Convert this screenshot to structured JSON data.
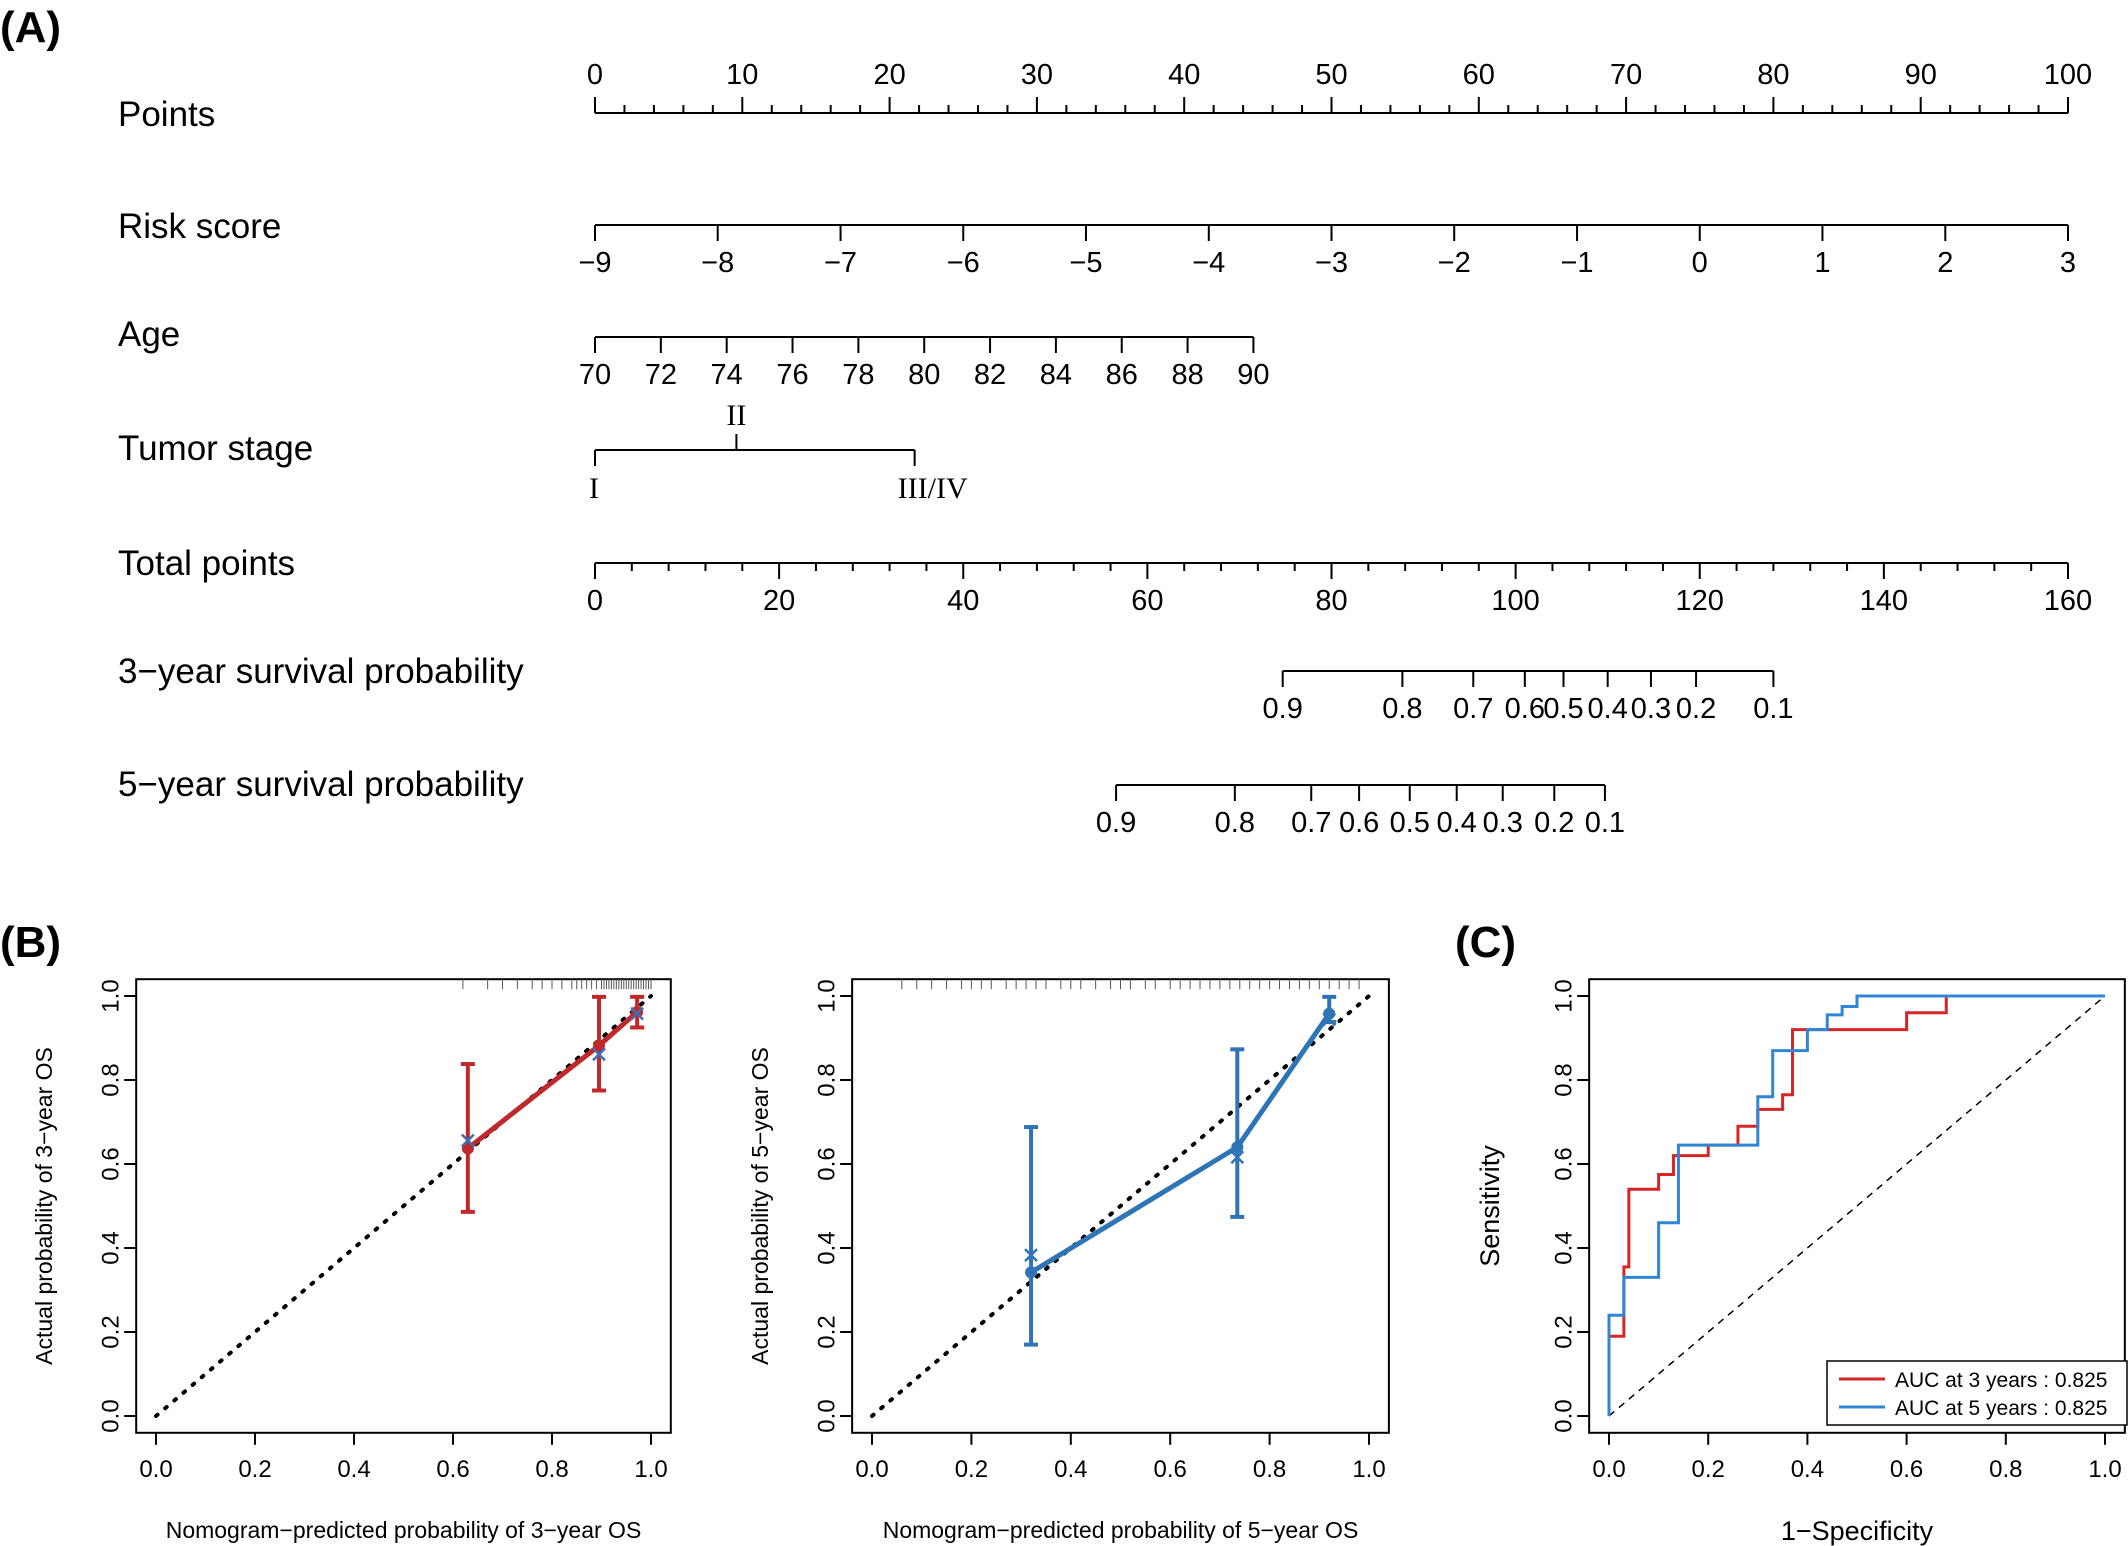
{
  "panels": {
    "a": "(A)",
    "b": "(B)",
    "c": "(C)"
  },
  "chart_data": [
    {
      "type": "nomogram",
      "panel": "(A)",
      "scales": [
        {
          "label": "Points",
          "ticks": [
            "0",
            "10",
            "20",
            "30",
            "40",
            "50",
            "60",
            "70",
            "80",
            "90",
            "100"
          ],
          "tick_points": [
            0,
            10,
            20,
            30,
            40,
            50,
            60,
            70,
            80,
            90,
            100
          ],
          "minor_step": 2
        },
        {
          "label": "Risk score",
          "ticks": [
            "−9",
            "−8",
            "−7",
            "−6",
            "−5",
            "−4",
            "−3",
            "−2",
            "−1",
            "0",
            "1",
            "2",
            "3"
          ],
          "tick_points": [
            0,
            8.33,
            16.67,
            25,
            33.33,
            41.67,
            50,
            58.33,
            66.67,
            75,
            83.33,
            91.67,
            100
          ]
        },
        {
          "label": "Age",
          "ticks": [
            "70",
            "72",
            "74",
            "76",
            "78",
            "80",
            "82",
            "84",
            "86",
            "88",
            "90"
          ],
          "tick_points": [
            0,
            4.47,
            8.94,
            13.41,
            17.88,
            22.35,
            26.82,
            31.29,
            35.76,
            40.23,
            44.7
          ]
        },
        {
          "label": "Tumor stage",
          "ticks": [
            "I",
            "II",
            "III/IV"
          ],
          "tick_points": [
            0,
            9.6,
            21.7
          ],
          "tick_side": [
            "below",
            "above",
            "below"
          ]
        },
        {
          "label": "Total points",
          "ticks": [
            "0",
            "20",
            "40",
            "60",
            "80",
            "100",
            "120",
            "140",
            "160"
          ],
          "tick_values": [
            0,
            20,
            40,
            60,
            80,
            100,
            120,
            140,
            160
          ],
          "range": [
            0,
            160
          ],
          "minor_step": 4
        },
        {
          "label": "3−year survival probability",
          "ticks": [
            "0.9",
            "0.8",
            "0.7",
            "0.6",
            "0.5",
            "0.4",
            "0.3",
            "0.2",
            "0.1"
          ],
          "tick_total_points": [
            74.7,
            87.7,
            95.4,
            101.0,
            105.2,
            110.0,
            114.7,
            119.6,
            128.0
          ]
        },
        {
          "label": "5−year survival probability",
          "ticks": [
            "0.9",
            "0.8",
            "0.7",
            "0.6",
            "0.5",
            "0.4",
            "0.3",
            "0.2",
            "0.1"
          ],
          "tick_total_points": [
            56.6,
            69.5,
            77.8,
            83.0,
            88.5,
            93.6,
            98.6,
            104.2,
            109.7
          ]
        }
      ]
    },
    {
      "type": "line",
      "panel": "(B)",
      "xlabel": "Nomogram−predicted probability of 3−year OS",
      "ylabel": "Actual probability of 3−year OS",
      "xlim": [
        0,
        1.0
      ],
      "ylim": [
        0,
        1.0
      ],
      "xticks": [
        "0.0",
        "0.2",
        "0.4",
        "0.6",
        "0.8",
        "1.0"
      ],
      "yticks": [
        "0.0",
        "0.2",
        "0.4",
        "0.6",
        "0.8",
        "1.0"
      ],
      "tick_values": [
        0,
        0.2,
        0.4,
        0.6,
        0.8,
        1.0
      ],
      "reference_line": {
        "x": [
          0,
          1.0
        ],
        "y": [
          0,
          1.0
        ],
        "style": "dotted"
      },
      "color": "#c0282b",
      "x": [
        0.63,
        0.895,
        0.972
      ],
      "y": [
        0.637,
        0.882,
        0.962
      ],
      "ci_low": [
        0.486,
        0.775,
        0.925
      ],
      "ci_high": [
        0.838,
        0.998,
        0.998
      ],
      "x_marks": {
        "x": [
          0.63,
          0.895,
          0.972
        ],
        "y": [
          0.656,
          0.861,
          0.958
        ],
        "color": "#3d6fb4"
      },
      "rug": [
        0.62,
        0.67,
        0.7,
        0.73,
        0.76,
        0.78,
        0.8,
        0.82,
        0.84,
        0.85,
        0.86,
        0.87,
        0.88,
        0.89,
        0.9,
        0.905,
        0.91,
        0.915,
        0.92,
        0.925,
        0.93,
        0.935,
        0.94,
        0.945,
        0.95,
        0.955,
        0.96,
        0.965,
        0.97,
        0.975,
        0.98,
        0.985,
        0.99,
        0.995,
        1.0
      ]
    },
    {
      "type": "line",
      "panel": "(B)",
      "xlabel": "Nomogram−predicted probability of 5−year OS",
      "ylabel": "Actual probability of 5−year OS",
      "xlim": [
        0,
        1.0
      ],
      "ylim": [
        0,
        1.0
      ],
      "xticks": [
        "0.0",
        "0.2",
        "0.4",
        "0.6",
        "0.8",
        "1.0"
      ],
      "yticks": [
        "0.0",
        "0.2",
        "0.4",
        "0.6",
        "0.8",
        "1.0"
      ],
      "tick_values": [
        0,
        0.2,
        0.4,
        0.6,
        0.8,
        1.0
      ],
      "reference_line": {
        "x": [
          0,
          1.0
        ],
        "y": [
          0,
          1.0
        ],
        "style": "dotted"
      },
      "color": "#2e75b6",
      "x": [
        0.32,
        0.735,
        0.92
      ],
      "y": [
        0.342,
        0.64,
        0.958
      ],
      "ci_low": [
        0.17,
        0.474,
        0.938
      ],
      "ci_high": [
        0.688,
        0.873,
        0.998
      ],
      "x_marks": {
        "x": [
          0.32,
          0.735,
          0.92
        ],
        "y": [
          0.383,
          0.616,
          0.944
        ],
        "color": "#2e75b6"
      },
      "rug": [
        0.06,
        0.09,
        0.12,
        0.15,
        0.18,
        0.2,
        0.22,
        0.24,
        0.27,
        0.29,
        0.31,
        0.33,
        0.35,
        0.38,
        0.4,
        0.42,
        0.45,
        0.48,
        0.5,
        0.52,
        0.55,
        0.57,
        0.6,
        0.62,
        0.64,
        0.66,
        0.68,
        0.7,
        0.72,
        0.74,
        0.76,
        0.78,
        0.8,
        0.82,
        0.84,
        0.86,
        0.88,
        0.9,
        0.92,
        0.94,
        0.96,
        0.98
      ]
    },
    {
      "type": "line",
      "panel": "(C)",
      "xlabel": "1−Specificity",
      "ylabel": "Sensitivity",
      "xlim": [
        0,
        1.0
      ],
      "ylim": [
        0,
        1.0
      ],
      "xticks": [
        "0.0",
        "0.2",
        "0.4",
        "0.6",
        "0.8",
        "1.0"
      ],
      "yticks": [
        "0.0",
        "0.2",
        "0.4",
        "0.6",
        "0.8",
        "1.0"
      ],
      "tick_values": [
        0,
        0.2,
        0.4,
        0.6,
        0.8,
        1.0
      ],
      "reference_line": {
        "x": [
          0,
          1.0
        ],
        "y": [
          0,
          1.0
        ],
        "style": "dashed"
      },
      "legend_position": "bottom-right",
      "series": [
        {
          "name": "AUC at 3 years : 0.825",
          "color": "#d62728",
          "x": [
            0,
            0,
            0.03,
            0.03,
            0.04,
            0.04,
            0.1,
            0.1,
            0.13,
            0.13,
            0.2,
            0.2,
            0.26,
            0.26,
            0.3,
            0.3,
            0.35,
            0.35,
            0.37,
            0.37,
            0.5,
            0.5,
            0.6,
            0.6,
            0.68,
            0.68,
            1.0
          ],
          "y": [
            0,
            0.19,
            0.19,
            0.355,
            0.355,
            0.54,
            0.54,
            0.575,
            0.575,
            0.62,
            0.62,
            0.645,
            0.645,
            0.69,
            0.69,
            0.73,
            0.73,
            0.765,
            0.765,
            0.92,
            0.92,
            0.92,
            0.92,
            0.96,
            0.96,
            1.0,
            1.0
          ]
        },
        {
          "name": "AUC at 5 years : 0.825",
          "color": "#2e86d4",
          "x": [
            0,
            0,
            0.01,
            0.01,
            0.03,
            0.03,
            0.1,
            0.1,
            0.14,
            0.14,
            0.3,
            0.3,
            0.33,
            0.33,
            0.4,
            0.4,
            0.44,
            0.44,
            0.47,
            0.47,
            0.5,
            0.5,
            0.6,
            0.6,
            0.66,
            1.0
          ],
          "y": [
            0,
            0.24,
            0.24,
            0.24,
            0.24,
            0.33,
            0.33,
            0.46,
            0.46,
            0.645,
            0.645,
            0.76,
            0.76,
            0.87,
            0.87,
            0.92,
            0.92,
            0.955,
            0.955,
            0.975,
            0.975,
            1.0,
            1.0,
            1.0,
            1.0,
            1.0
          ]
        }
      ]
    }
  ]
}
